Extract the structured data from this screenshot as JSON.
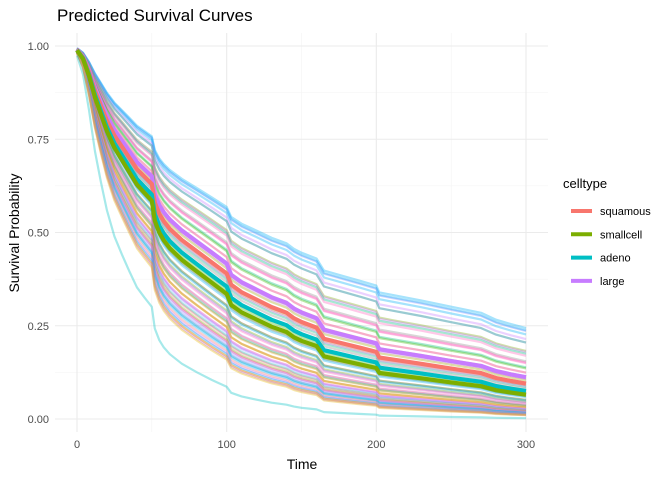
{
  "chart_data": {
    "type": "line",
    "title": "Predicted Survival Curves",
    "xlabel": "Time",
    "ylabel": "Survival Probability",
    "xlim": [
      -10,
      315
    ],
    "ylim": [
      -0.02,
      1.03
    ],
    "x_ticks": [
      0,
      100,
      200,
      300
    ],
    "x_tick_labels": [
      "0",
      "100",
      "200",
      "300"
    ],
    "y_ticks": [
      0,
      0.25,
      0.5,
      0.75,
      1.0
    ],
    "y_tick_labels": [
      "0.00",
      "0.25",
      "0.50",
      "0.75",
      "1.00"
    ],
    "grid": true,
    "legend": {
      "title": "celltype",
      "position": "right",
      "entries": [
        {
          "label": "squamous",
          "color": "#F8766D"
        },
        {
          "label": "smallcell",
          "color": "#7CAE00"
        },
        {
          "label": "adeno",
          "color": "#00BFC4"
        },
        {
          "label": "large",
          "color": "#C77CFF"
        }
      ]
    },
    "times": [
      0,
      4,
      8,
      12,
      16,
      20,
      25,
      30,
      35,
      40,
      45,
      50,
      52,
      55,
      58,
      62,
      70,
      80,
      90,
      100,
      103,
      110,
      120,
      130,
      140,
      145,
      150,
      160,
      165,
      175,
      190,
      200,
      202,
      210,
      230,
      250,
      270,
      280,
      290,
      300
    ],
    "baseline_survival": [
      0.99,
      0.97,
      0.93,
      0.88,
      0.84,
      0.8,
      0.76,
      0.73,
      0.7,
      0.67,
      0.65,
      0.63,
      0.58,
      0.55,
      0.53,
      0.51,
      0.48,
      0.45,
      0.42,
      0.39,
      0.36,
      0.34,
      0.32,
      0.3,
      0.285,
      0.27,
      0.26,
      0.245,
      0.215,
      0.205,
      0.19,
      0.18,
      0.165,
      0.16,
      0.148,
      0.135,
      0.123,
      0.11,
      0.102,
      0.095
    ],
    "series": [
      {
        "name": "large",
        "color": "#C77CFF",
        "emphasis": true,
        "relative_hazard": 0.93
      },
      {
        "name": "squamous",
        "color": "#F8766D",
        "emphasis": true,
        "relative_hazard": 1.0
      },
      {
        "name": "adeno",
        "color": "#00BFC4",
        "emphasis": true,
        "relative_hazard": 1.1
      },
      {
        "name": "smallcell",
        "color": "#7CAE00",
        "emphasis": true,
        "relative_hazard": 1.16
      }
    ],
    "individual_curves": {
      "count": 64,
      "relative_hazard_range": [
        0.6,
        1.95
      ],
      "opacity": 0.35,
      "palette": [
        "#F8766D",
        "#7CAE00",
        "#00BFC4",
        "#C77CFF",
        "#E7B800",
        "#A3A500",
        "#00B0F6",
        "#E76BF3",
        "#39B600",
        "#D89000",
        "#00BF7D",
        "#9590FF",
        "#FF62BC",
        "#8B8B8B"
      ]
    }
  }
}
